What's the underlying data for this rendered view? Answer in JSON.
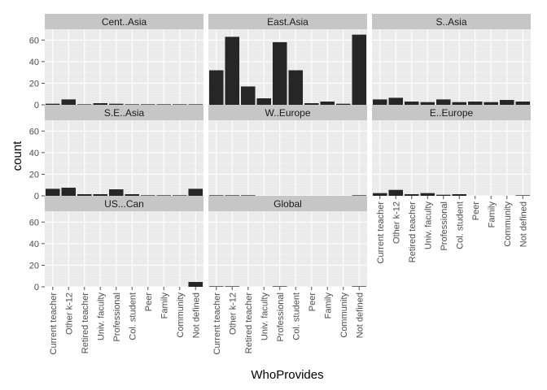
{
  "chart_data": {
    "type": "bar",
    "xlabel": "WhoProvides",
    "ylabel": "count",
    "ylim": [
      0,
      70
    ],
    "yticks": [
      0,
      20,
      40,
      60
    ],
    "grid": true,
    "layout": "facet_wrap ncol 3",
    "categories": [
      "Current teacher",
      "Other k-12",
      "Retired teacher",
      "Univ. faculty",
      "Professional",
      "Col. student",
      "Peer",
      "Family",
      "Community",
      "Not defined"
    ],
    "colors": {
      "bar": "#262626",
      "panel": "#ebebeb",
      "strip": "#c6c6c6",
      "grid_major": "#ffffff",
      "grid_minor": "#f4f4f4"
    },
    "facets": [
      {
        "name": "Cent..Asia",
        "values": [
          1,
          5,
          0.5,
          1.5,
          1,
          0.5,
          0.5,
          0.5,
          0.5,
          0.5
        ]
      },
      {
        "name": "East.Asia",
        "values": [
          32,
          63,
          17,
          6,
          58,
          32,
          1.5,
          3,
          1,
          65
        ]
      },
      {
        "name": "S..Asia",
        "values": [
          5,
          6.5,
          3,
          2.5,
          5,
          2.5,
          3,
          2.5,
          4.5,
          3
        ]
      },
      {
        "name": "S.E..Asia",
        "values": [
          6.5,
          7.5,
          1.5,
          1.5,
          6,
          1.5,
          0.5,
          0.5,
          0.5,
          6.5
        ]
      },
      {
        "name": "W..Europe",
        "values": [
          0.5,
          0.5,
          0.5,
          0,
          0,
          0,
          0,
          0,
          0,
          0.5
        ]
      },
      {
        "name": "E..Europe",
        "values": [
          2.5,
          5.5,
          1.5,
          2.5,
          1,
          1.5,
          0,
          0,
          0,
          0.5
        ]
      },
      {
        "name": "US...Can",
        "values": [
          0,
          0,
          0,
          0,
          0,
          0,
          0,
          0,
          0,
          4.5
        ]
      },
      {
        "name": "Global",
        "values": [
          0.5,
          0.5,
          0,
          0,
          0.5,
          0,
          0,
          0,
          0,
          0.5
        ]
      }
    ]
  }
}
